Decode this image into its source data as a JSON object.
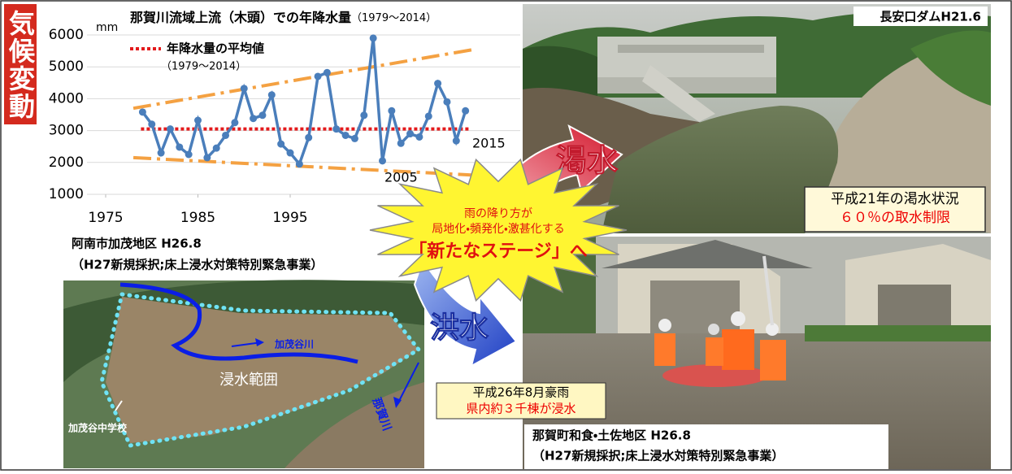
{
  "side_label": "気候変動",
  "chart_data": {
    "type": "line",
    "title": "那賀川流域上流（木頭）での年降水量",
    "title_note": "（1979～2014）",
    "y_unit": "mm",
    "x": [
      1979,
      1980,
      1981,
      1982,
      1983,
      1984,
      1985,
      1986,
      1987,
      1988,
      1989,
      1990,
      1991,
      1992,
      1993,
      1994,
      1995,
      1996,
      1997,
      1998,
      1999,
      2000,
      2001,
      2002,
      2003,
      2004,
      2005,
      2006,
      2007,
      2008,
      2009,
      2010,
      2011,
      2012,
      2013,
      2014
    ],
    "series": [
      {
        "color": "#4a7ebb",
        "values": [
          3580,
          3200,
          2300,
          3050,
          2480,
          2250,
          3320,
          2150,
          2450,
          2850,
          3250,
          4320,
          3380,
          3480,
          4120,
          2580,
          2300,
          1950,
          2780,
          4700,
          4820,
          3050,
          2850,
          2750,
          3480,
          5900,
          2050,
          3620,
          2600,
          2900,
          2800,
          3450,
          4480,
          3900,
          2680,
          3620
        ]
      }
    ],
    "mean_line": {
      "name": "年降水量の平均値",
      "note": "（1979～2014）",
      "value": 3050,
      "color": "#e31a1c"
    },
    "trend_lines": [
      {
        "x": [
          1978,
          2015
        ],
        "values": [
          3700,
          5550
        ],
        "color": "#f4a142"
      },
      {
        "x": [
          1978,
          2015
        ],
        "values": [
          2150,
          1600
        ],
        "color": "#f4a142"
      }
    ],
    "annotations": [
      "2005",
      "2015"
    ],
    "xlim": [
      1975,
      2015
    ],
    "xticks": [
      1975,
      1985,
      1995
    ],
    "ylim": [
      1000,
      6000
    ],
    "yticks": [
      1000,
      2000,
      3000,
      4000,
      5000,
      6000
    ],
    "grid": true
  },
  "dam": {
    "label": "長安口ダムH21.6",
    "caption": [
      "平成21年の渇水状況",
      "６０％の取水制限"
    ]
  },
  "center": {
    "burst": [
      "雨の降り方が",
      "局地化・頻発化・激甚化する",
      "「新たなステージ」へ"
    ],
    "drought": "渇水",
    "flood": "洪水",
    "flood_note": [
      "平成26年8月豪雨",
      "県内約３千棟が浸水"
    ]
  },
  "anan": {
    "title": "阿南市加茂地区 H26.8",
    "subtitle": "（H27新規採択;床上浸水対策特別緊急事業）",
    "river": "加茂谷川",
    "area": "浸水範囲",
    "naka": "那賀川",
    "school": "加茂谷中学校"
  },
  "naka": {
    "title": "那賀町和食・土佐地区 H26.8",
    "subtitle": "（H27新規採択;床上浸水対策特別緊急事業）"
  }
}
